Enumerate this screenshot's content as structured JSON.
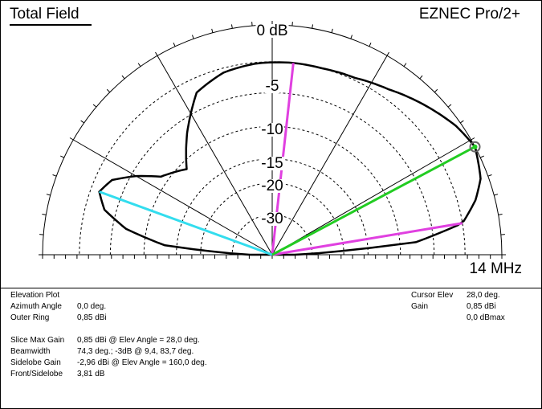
{
  "header": {
    "title": "Total Field",
    "brand": "EZNEC Pro/2+",
    "frequency": "14 MHz"
  },
  "info": {
    "plot_type": "Elevation Plot",
    "azimuth_label": "Azimuth Angle",
    "azimuth_value": "0,0 deg.",
    "outer_ring_label": "Outer Ring",
    "outer_ring_value": "0,85 dBi",
    "slice_max_label": "Slice Max Gain",
    "slice_max_value": "0,85 dBi @ Elev Angle = 28,0 deg.",
    "beamwidth_label": "Beamwidth",
    "beamwidth_value": "74,3 deg.; -3dB @ 9,4, 83,7 deg.",
    "sidelobe_label": "Sidelobe Gain",
    "sidelobe_value": "-2,96 dBi @ Elev Angle = 160,0 deg.",
    "front_sidelobe_label": "Front/Sidelobe",
    "front_sidelobe_value": "3,81 dB",
    "cursor_elev_label": "Cursor Elev",
    "cursor_elev_value": "28,0 deg.",
    "gain_label": "Gain",
    "gain_value": "0,85 dBi",
    "gain_max_value": "0,0 dBmax"
  },
  "chart_data": {
    "type": "polar-elevation",
    "radial_labels": [
      "0 dB",
      "-5",
      "-10",
      "-15",
      "-20",
      "-30"
    ],
    "rings_db": [
      -3,
      -6,
      -10,
      -15,
      -20,
      -30
    ],
    "elevation_deg": [
      0,
      5,
      9.4,
      15,
      20,
      28,
      35,
      45,
      55,
      65,
      75,
      83.7,
      95,
      105,
      115,
      125,
      135,
      145,
      150,
      155,
      160,
      165,
      170,
      175,
      180
    ],
    "gain_dbmax": [
      -40,
      -8,
      -3,
      -1.5,
      -0.6,
      0,
      -0.4,
      -1.3,
      -2.2,
      -2.8,
      -3.0,
      -3.0,
      -3.1,
      -3.4,
      -4.3,
      -7.5,
      -11,
      -9,
      -6.5,
      -4.5,
      -3.8,
      -4.8,
      -7.5,
      -13,
      -40
    ],
    "cursor": {
      "elev_deg": 28.0,
      "color": "#22cc22"
    },
    "beamwidth_lines_deg": [
      9.4,
      83.7
    ],
    "sidelobe": {
      "elev_deg": 160.0,
      "color": "#33ddee"
    },
    "colors": {
      "pattern": "#000000",
      "beamwidth": "#e040e0",
      "cursor": "#22cc22",
      "sidelobe": "#33ddee"
    },
    "grid": true
  }
}
